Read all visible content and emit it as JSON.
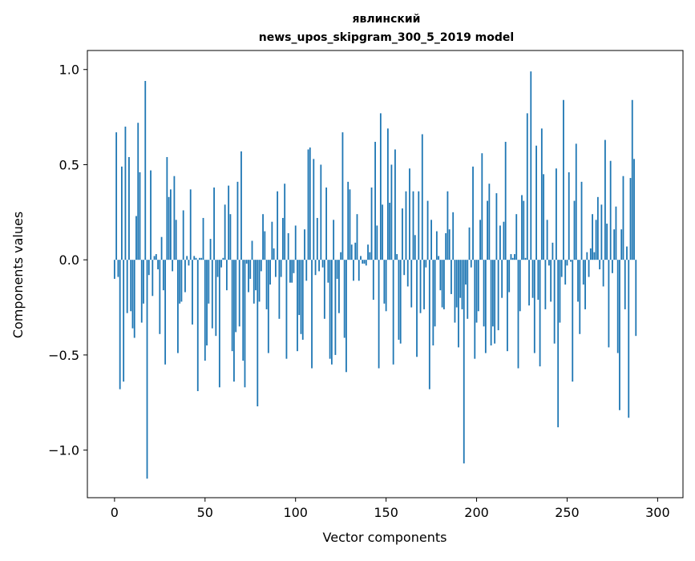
{
  "chart_data": {
    "type": "bar",
    "title": "явлинский",
    "subtitle": "news_upos_skipgram_300_5_2019 model",
    "xlabel": "Vector components",
    "ylabel": "Components values",
    "xlim": [
      -15,
      314
    ],
    "ylim": [
      -1.25,
      1.1
    ],
    "xticks": [
      0,
      50,
      100,
      150,
      200,
      250,
      300
    ],
    "yticks": [
      -1.0,
      -0.5,
      0.0,
      0.5,
      1.0
    ],
    "xtick_labels": [
      "0",
      "50",
      "100",
      "150",
      "200",
      "250",
      "300"
    ],
    "ytick_labels": [
      "−1.0",
      "−0.5",
      "0.0",
      "0.5",
      "1.0"
    ],
    "bar_color": "#1f77b4",
    "grid": false,
    "values": [
      -0.1,
      0.67,
      -0.09,
      -0.68,
      0.49,
      -0.64,
      0.7,
      -0.28,
      0.54,
      -0.27,
      -0.36,
      -0.41,
      0.23,
      0.72,
      0.46,
      -0.33,
      -0.23,
      0.94,
      -1.15,
      -0.08,
      0.47,
      -0.19,
      0.02,
      0.03,
      -0.05,
      -0.39,
      0.12,
      -0.16,
      -0.55,
      0.54,
      0.33,
      0.37,
      -0.06,
      0.44,
      0.21,
      -0.49,
      -0.23,
      -0.22,
      0.26,
      -0.17,
      0.02,
      -0.03,
      0.37,
      -0.34,
      0.02,
      0.01,
      -0.69,
      0.01,
      0.01,
      0.22,
      -0.53,
      -0.45,
      -0.23,
      0.11,
      -0.36,
      0.38,
      -0.4,
      -0.09,
      -0.67,
      -0.04,
      0.01,
      0.29,
      -0.16,
      0.39,
      0.24,
      -0.48,
      -0.64,
      -0.38,
      0.41,
      -0.35,
      0.57,
      -0.53,
      -0.67,
      -0.02,
      -0.17,
      -0.1,
      0.1,
      -0.23,
      -0.16,
      -0.77,
      -0.22,
      -0.06,
      0.24,
      0.15,
      -0.26,
      -0.49,
      -0.13,
      0.2,
      0.06,
      -0.09,
      0.36,
      -0.31,
      -0.09,
      0.22,
      0.4,
      -0.52,
      0.14,
      -0.12,
      -0.12,
      -0.07,
      0.18,
      -0.48,
      -0.29,
      -0.39,
      -0.42,
      0.16,
      -0.11,
      0.58,
      0.59,
      -0.57,
      0.53,
      -0.08,
      0.22,
      -0.06,
      0.5,
      -0.04,
      -0.31,
      0.38,
      -0.12,
      -0.52,
      -0.55,
      0.21,
      -0.5,
      -0.1,
      -0.28,
      0.04,
      0.67,
      -0.41,
      -0.59,
      0.41,
      0.37,
      0.08,
      -0.11,
      0.09,
      0.24,
      -0.11,
      0.02,
      -0.02,
      -0.02,
      -0.03,
      0.08,
      0.04,
      0.38,
      -0.21,
      0.62,
      0.18,
      -0.57,
      0.77,
      0.29,
      -0.23,
      -0.27,
      0.69,
      0.3,
      0.5,
      -0.55,
      0.58,
      0.03,
      -0.42,
      -0.44,
      0.27,
      -0.08,
      0.36,
      -0.14,
      0.48,
      -0.25,
      0.36,
      0.13,
      -0.51,
      0.36,
      -0.28,
      0.66,
      -0.26,
      -0.04,
      0.31,
      -0.68,
      0.21,
      -0.45,
      -0.35,
      0.15,
      0.02,
      -0.16,
      -0.25,
      -0.26,
      0.14,
      0.36,
      0.16,
      -0.18,
      0.25,
      -0.33,
      -0.25,
      -0.46,
      -0.2,
      -0.26,
      -1.07,
      -0.13,
      -0.31,
      0.17,
      -0.04,
      0.49,
      -0.52,
      -0.33,
      -0.27,
      0.21,
      0.56,
      -0.35,
      -0.49,
      0.31,
      0.4,
      -0.45,
      -0.35,
      -0.44,
      0.35,
      -0.37,
      0.18,
      -0.2,
      0.2,
      0.62,
      -0.48,
      -0.17,
      0.03,
      0.01,
      0.03,
      0.24,
      -0.57,
      -0.27,
      0.34,
      0.31,
      0.01,
      0.77,
      -0.24,
      0.99,
      -0.2,
      -0.49,
      0.6,
      -0.21,
      -0.56,
      0.69,
      0.45,
      -0.26,
      0.21,
      -0.03,
      -0.22,
      0.09,
      -0.44,
      0.48,
      -0.88,
      -0.33,
      -0.09,
      0.84,
      -0.13,
      -0.03,
      0.46,
      -0.01,
      -0.64,
      0.31,
      0.61,
      -0.22,
      -0.39,
      0.41,
      -0.13,
      -0.26,
      0.04,
      -0.09,
      0.06,
      0.24,
      0.04,
      0.21,
      0.33,
      -0.05,
      0.29,
      -0.14,
      0.63,
      0.19,
      -0.46,
      0.52,
      -0.07,
      0.16,
      0.28,
      -0.49,
      -0.79,
      0.16,
      0.44,
      -0.26,
      0.07,
      -0.83,
      0.43,
      0.84,
      0.53,
      -0.4
    ]
  }
}
